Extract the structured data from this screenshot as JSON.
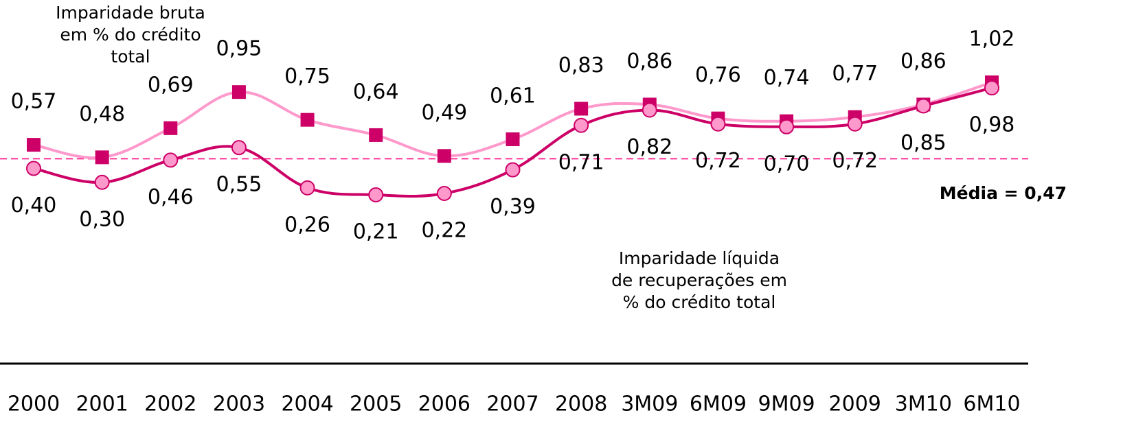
{
  "chart_data": {
    "type": "line",
    "categories": [
      "2000",
      "2001",
      "2002",
      "2003",
      "2004",
      "2005",
      "2006",
      "2007",
      "2008",
      "3M09",
      "6M09",
      "9M09",
      "2009",
      "3M10",
      "6M10"
    ],
    "series": [
      {
        "name": "Imparidade bruta em % do crédito total",
        "color": "#ff99cc",
        "marker_color": "#cc0066",
        "marker": "square",
        "values": [
          0.57,
          0.48,
          0.69,
          0.95,
          0.75,
          0.64,
          0.49,
          0.61,
          0.83,
          0.86,
          0.76,
          0.74,
          0.77,
          0.86,
          1.02
        ],
        "value_labels": [
          "0,57",
          "0,48",
          "0,69",
          "0,95",
          "0,75",
          "0,64",
          "0,49",
          "0,61",
          "0,83",
          "0,86",
          "0,76",
          "0,74",
          "0,77",
          "0,86",
          "1,02"
        ]
      },
      {
        "name": "Imparidade líquida de recuperações em % do crédito total",
        "color": "#cc0066",
        "marker_color": "#ff99cc",
        "marker": "circle",
        "values": [
          0.4,
          0.3,
          0.46,
          0.55,
          0.26,
          0.21,
          0.22,
          0.39,
          0.71,
          0.82,
          0.72,
          0.7,
          0.72,
          0.85,
          0.98
        ],
        "value_labels": [
          "0,40",
          "0,30",
          "0,46",
          "0,55",
          "0,26",
          "0,21",
          "0,22",
          "0,39",
          "0,71",
          "0,82",
          "0,72",
          "0,70",
          "0,72",
          "0,85",
          "0,98"
        ]
      }
    ],
    "annotations": [
      {
        "lines": [
          "Imparidade bruta",
          "em % do crédito",
          "total"
        ]
      },
      {
        "lines": [
          "Imparidade líquida",
          "de recuperações em",
          "% do crédito total"
        ]
      }
    ],
    "average": {
      "value": 0.47,
      "label": "Média = 0,47",
      "color": "#ff3399"
    }
  }
}
